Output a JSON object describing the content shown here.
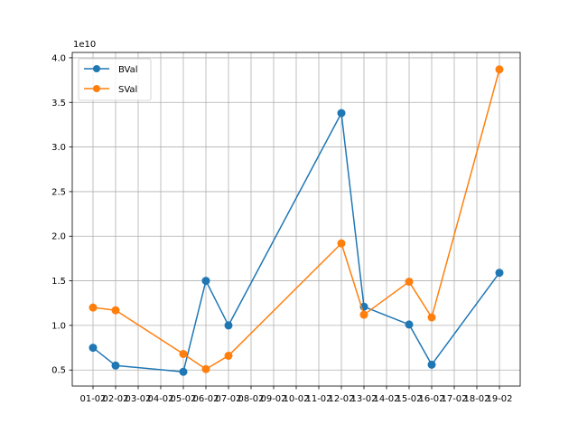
{
  "chart_data": {
    "type": "line",
    "title": "",
    "xlabel": "",
    "ylabel": "",
    "y_scale_label": "1e10",
    "x": [
      "01-02",
      "02-02",
      "03-02",
      "04-02",
      "05-02",
      "06-02",
      "07-02",
      "08-02",
      "09-02",
      "10-02",
      "11-02",
      "12-02",
      "13-02",
      "14-02",
      "15-02",
      "16-02",
      "17-02",
      "18-02",
      "19-02"
    ],
    "series": [
      {
        "name": "BVal",
        "color": "#1f77b4",
        "points": [
          {
            "x": "01-02",
            "y": 0.75
          },
          {
            "x": "02-02",
            "y": 0.55
          },
          {
            "x": "05-02",
            "y": 0.48
          },
          {
            "x": "06-02",
            "y": 1.5
          },
          {
            "x": "07-02",
            "y": 1.0
          },
          {
            "x": "12-02",
            "y": 3.38
          },
          {
            "x": "13-02",
            "y": 1.21
          },
          {
            "x": "15-02",
            "y": 1.01
          },
          {
            "x": "16-02",
            "y": 0.56
          },
          {
            "x": "19-02",
            "y": 1.59
          }
        ]
      },
      {
        "name": "SVal",
        "color": "#ff7f0e",
        "points": [
          {
            "x": "01-02",
            "y": 1.2
          },
          {
            "x": "02-02",
            "y": 1.17
          },
          {
            "x": "05-02",
            "y": 0.68
          },
          {
            "x": "06-02",
            "y": 0.51
          },
          {
            "x": "07-02",
            "y": 0.66
          },
          {
            "x": "12-02",
            "y": 1.92
          },
          {
            "x": "13-02",
            "y": 1.12
          },
          {
            "x": "15-02",
            "y": 1.49
          },
          {
            "x": "16-02",
            "y": 1.09
          },
          {
            "x": "19-02",
            "y": 3.87
          }
        ]
      }
    ],
    "y_ticks": [
      "0.5",
      "1.0",
      "1.5",
      "2.0",
      "2.5",
      "3.0",
      "3.5",
      "4.0"
    ],
    "ylim": [
      0.32,
      4.06
    ],
    "grid": true,
    "legend_position": "upper left"
  }
}
